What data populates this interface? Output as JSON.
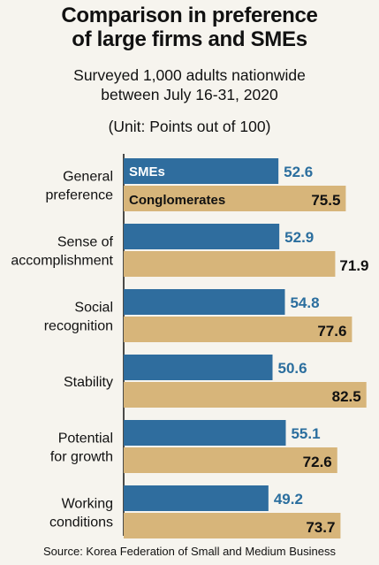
{
  "chart_data": {
    "type": "bar",
    "title": "Comparison in preference of large firms and SMEs",
    "subtitle": [
      "Surveyed 1,000 adults nationwide",
      "between July 16-31, 2020"
    ],
    "unit": "(Unit: Points out of 100)",
    "source": "Source: Korea Federation of Small and Medium Business",
    "categories": [
      [
        "General",
        "preference"
      ],
      [
        "Sense of",
        "accomplishment"
      ],
      [
        "Social",
        "recognition"
      ],
      [
        "Stability"
      ],
      [
        "Potential",
        "for growth"
      ],
      [
        "Working",
        "conditions"
      ]
    ],
    "series": [
      {
        "name": "SMEs",
        "color": "#2f6d9e",
        "values": [
          52.6,
          52.9,
          54.8,
          50.6,
          55.1,
          49.2
        ]
      },
      {
        "name": "Conglomerates",
        "color": "#d7b57a",
        "values": [
          75.5,
          71.9,
          77.6,
          82.5,
          72.6,
          73.7
        ]
      }
    ],
    "orientation": "horizontal",
    "xlim": [
      0,
      100
    ],
    "grid": false,
    "legend": "inside first bars"
  }
}
